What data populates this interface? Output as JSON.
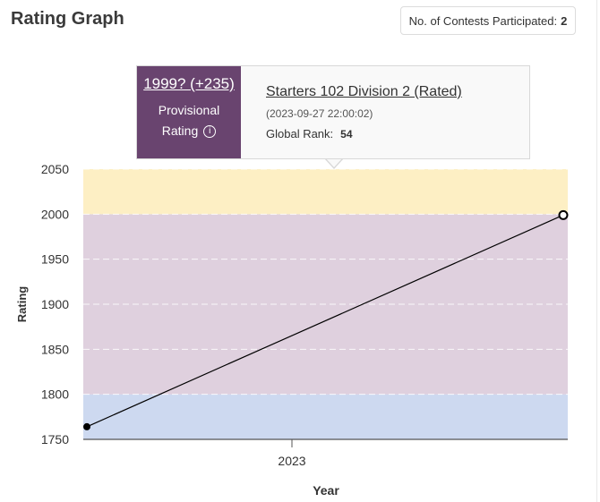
{
  "header": {
    "title": "Rating Graph",
    "contests_label": "No. of Contests Participated:",
    "contests_count": "2"
  },
  "tooltip": {
    "rating": "1999? (+235)",
    "provisional_line1": "Provisional",
    "provisional_line2": "Rating",
    "info_icon": "info-icon",
    "contest_name": "Starters 102 Division 2 (Rated)",
    "date": "(2023-09-27 22:00:02)",
    "rank_label": "Global Rank:",
    "rank_value": "54"
  },
  "chart_data": {
    "type": "line",
    "xlabel": "Year",
    "ylabel": "Rating",
    "ylim": [
      1750,
      2050
    ],
    "yticks": [
      "2050",
      "2000",
      "1950",
      "1900",
      "1850",
      "1800",
      "1750"
    ],
    "xticks": [
      "2023"
    ],
    "grid": true,
    "bands": [
      {
        "from": 1750,
        "to": 1800,
        "color": "#cdd9f0"
      },
      {
        "from": 1800,
        "to": 2000,
        "color": "#dfd0de"
      },
      {
        "from": 2000,
        "to": 2050,
        "color": "#fdefc4"
      }
    ],
    "series": [
      {
        "values": [
          1764,
          1999
        ],
        "color": "#000000"
      }
    ]
  }
}
